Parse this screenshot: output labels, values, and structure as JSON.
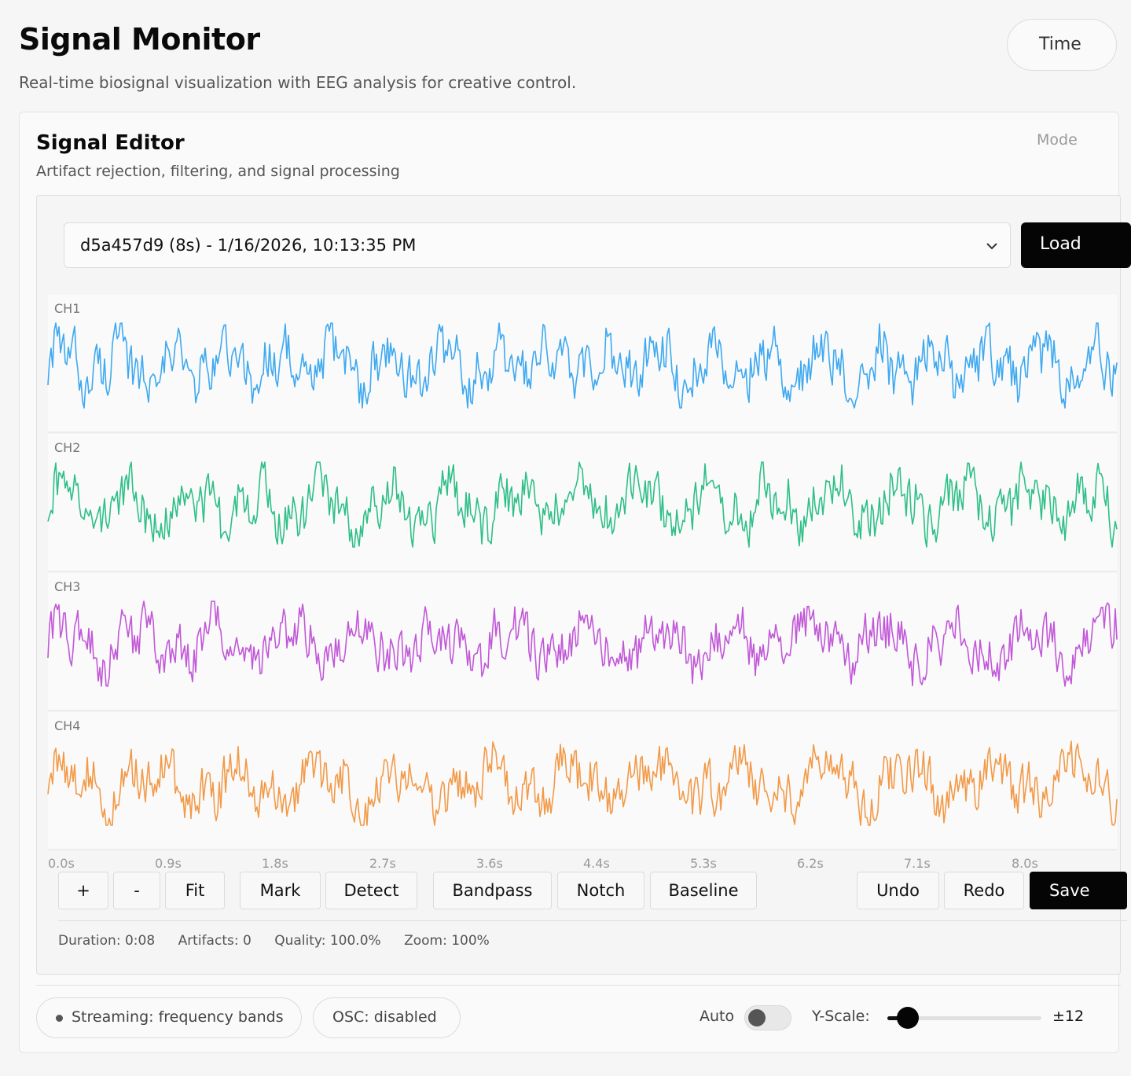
{
  "header": {
    "title": "Signal Monitor",
    "subtitle": "Real-time biosignal visualization with EEG analysis for creative control.",
    "top_button_label": "Time"
  },
  "editor_card": {
    "title": "Signal Editor",
    "subtitle": "Artifact rejection, filtering, and signal processing",
    "mode_label": "Mode"
  },
  "session": {
    "selected": "d5a457d9 (8s) - 1/16/2026, 10:13:35 PM",
    "load_label": "Load"
  },
  "channels": [
    {
      "label": "CH1",
      "color": "#3fa9f0"
    },
    {
      "label": "CH2",
      "color": "#2fbf88"
    },
    {
      "label": "CH3",
      "color": "#c158d8"
    },
    {
      "label": "CH4",
      "color": "#f29a48"
    }
  ],
  "time_axis": {
    "ticks": [
      "0.0s",
      "0.9s",
      "1.8s",
      "2.7s",
      "3.6s",
      "4.4s",
      "5.3s",
      "6.2s",
      "7.1s",
      "8.0s"
    ],
    "duration_seconds": 8
  },
  "toolbar": {
    "zoom_in_label": "+",
    "zoom_out_label": "-",
    "fit_label": "Fit",
    "mark_label": "Mark",
    "detect_label": "Detect",
    "bandpass_label": "Bandpass",
    "notch_label": "Notch",
    "baseline_label": "Baseline",
    "undo_label": "Undo",
    "redo_label": "Redo",
    "save_label": "Save"
  },
  "stats": {
    "duration": "Duration: 0:08",
    "artifacts": "Artifacts: 0",
    "quality": "Quality: 100.0%",
    "zoom": "Zoom: 100%"
  },
  "footer": {
    "streaming": "Streaming: frequency bands",
    "osc": "OSC:  disabled",
    "auto_label": "Auto",
    "auto_enabled": false,
    "yscale_label": "Y-Scale:",
    "yscale_value": "±12",
    "yscale_level": 0.07
  },
  "icons": {
    "dropdown": "chevron-down-icon",
    "status": "status-dot-icon"
  }
}
